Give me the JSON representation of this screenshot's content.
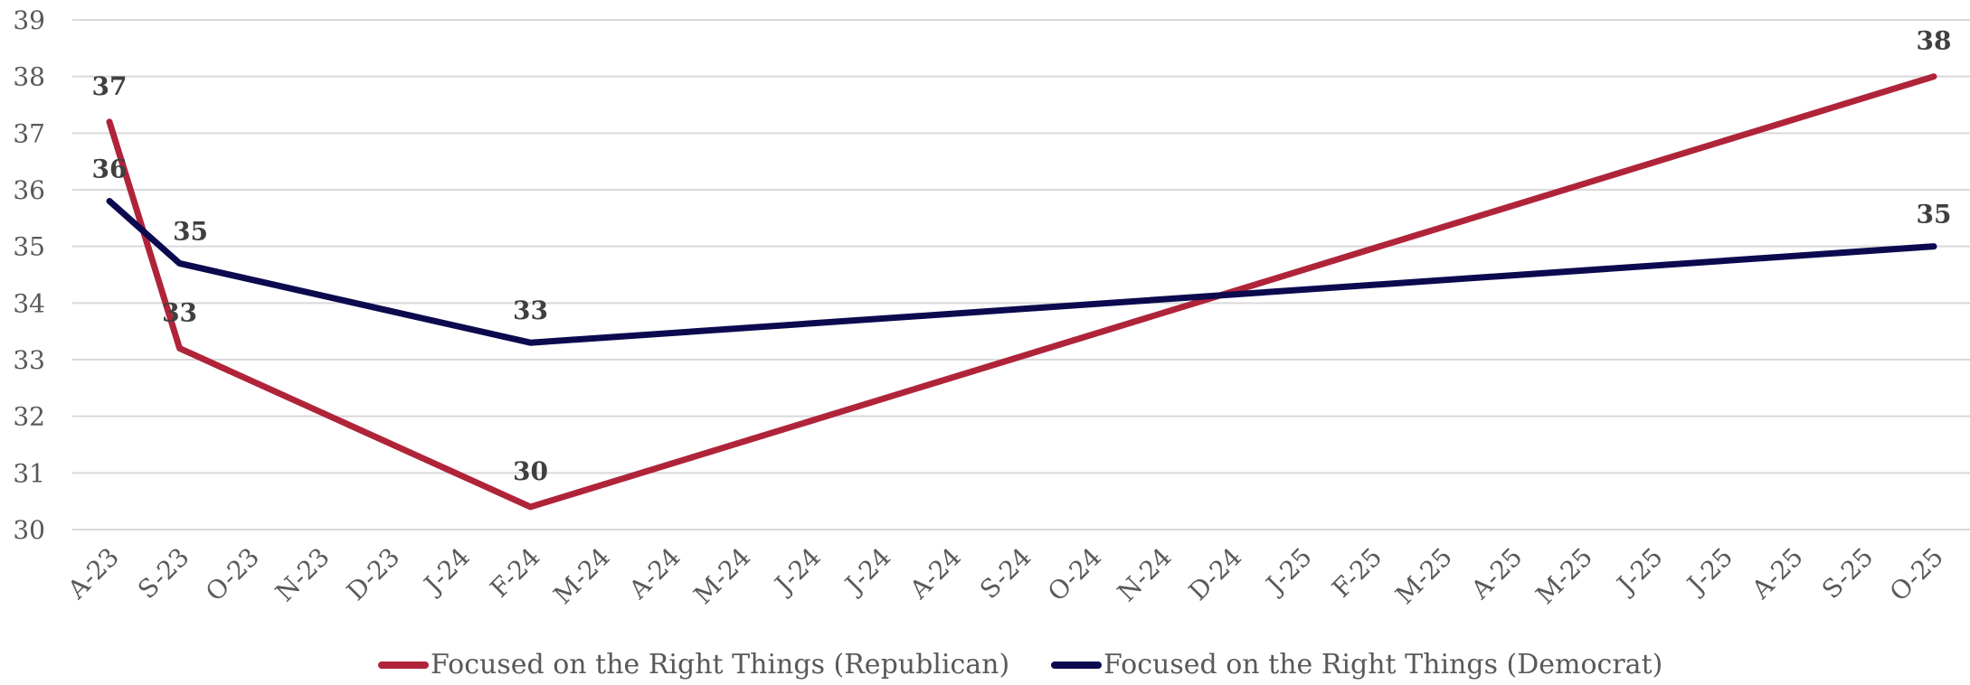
{
  "chart_data": {
    "type": "line",
    "title": "",
    "xlabel": "",
    "ylabel": "",
    "ylim": [
      30,
      39
    ],
    "yticks": [
      "30",
      "31",
      "32",
      "33",
      "34",
      "35",
      "36",
      "37",
      "38",
      "39"
    ],
    "categories": [
      "A-23",
      "S-23",
      "O-23",
      "N-23",
      "D-23",
      "J-24",
      "F-24",
      "M-24",
      "A-24",
      "M-24",
      "J-24",
      "J-24",
      "A-24",
      "S-24",
      "O-24",
      "N-24",
      "D-24",
      "J-25",
      "F-25",
      "M-25",
      "A-25",
      "M-25",
      "J-25",
      "J-25",
      "A-25",
      "S-25",
      "O-25"
    ],
    "grid": true,
    "legend_position": "bottom",
    "series": [
      {
        "name": "Focused on the Right Things (Republican)",
        "color": "#b0243a",
        "points": [
          {
            "x": "A-23",
            "y": 37.2,
            "label": "37"
          },
          {
            "x": "S-23",
            "y": 33.2,
            "label": "33"
          },
          {
            "x": "F-24",
            "y": 30.4,
            "label": "30"
          },
          {
            "x": "O-25",
            "y": 38.0,
            "label": "38"
          }
        ]
      },
      {
        "name": "Focused on the Right Things (Democrat)",
        "color": "#0c0a4f",
        "points": [
          {
            "x": "A-23",
            "y": 35.8,
            "label": "36"
          },
          {
            "x": "S-23",
            "y": 34.7,
            "label": "35"
          },
          {
            "x": "F-24",
            "y": 33.3,
            "label": "33"
          },
          {
            "x": "O-25",
            "y": 35.0,
            "label": "35"
          }
        ]
      }
    ]
  }
}
